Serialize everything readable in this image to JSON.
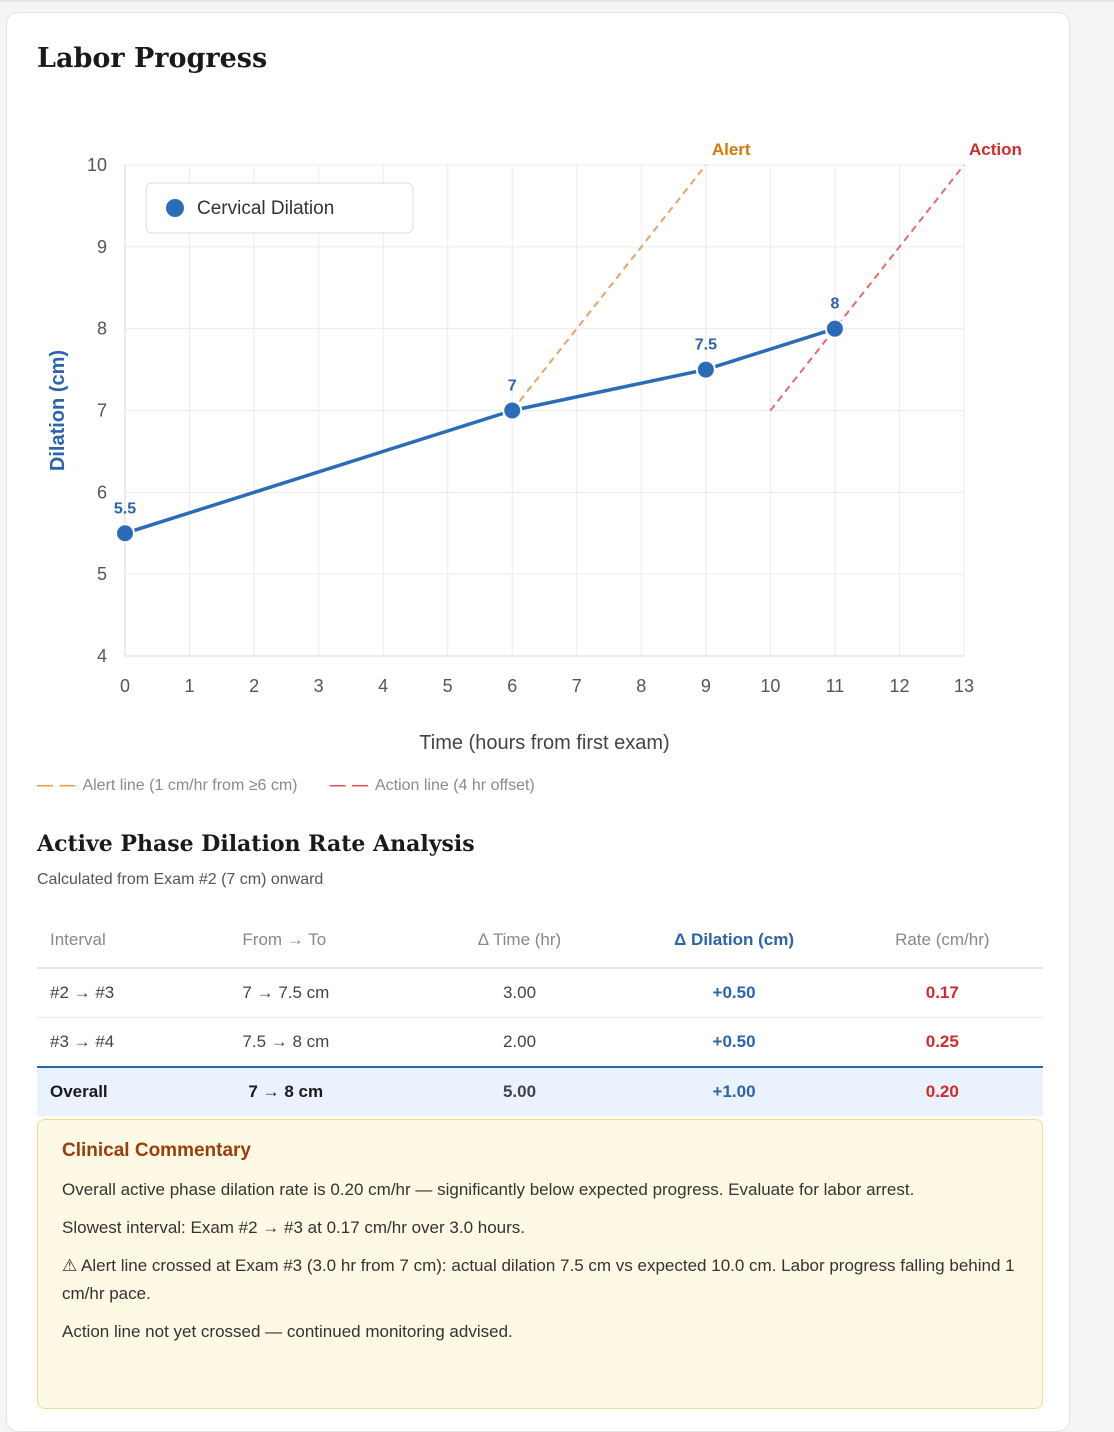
{
  "page_title": "Labor Progress",
  "chart_data": {
    "type": "line",
    "xlabel": "Time (hours from first exam)",
    "ylabel": "Dilation (cm)",
    "xlim": [
      0,
      13
    ],
    "ylim": [
      4,
      10
    ],
    "x_ticks": [
      "0",
      "1",
      "2",
      "3",
      "4",
      "5",
      "6",
      "7",
      "8",
      "9",
      "10",
      "11",
      "12",
      "13"
    ],
    "y_ticks": [
      "4",
      "5",
      "6",
      "7",
      "8",
      "9",
      "10"
    ],
    "grid": true,
    "legend_position": "top-left",
    "series": [
      {
        "name": "Cervical Dilation",
        "color": "#2b6cb8",
        "x": [
          0,
          6,
          9,
          11
        ],
        "y": [
          5.5,
          7,
          7.5,
          8
        ],
        "labels": [
          "5.5",
          "7",
          "7.5",
          "8"
        ]
      }
    ],
    "reference_lines": [
      {
        "name": "Alert",
        "label": "Alert",
        "color": "#e8a26a",
        "label_color": "#d97706",
        "x": [
          6,
          9
        ],
        "y": [
          7,
          10
        ]
      },
      {
        "name": "Action",
        "label": "Action",
        "color": "#e86a6a",
        "label_color": "#d42a2a",
        "x": [
          10,
          13
        ],
        "y": [
          7,
          10
        ]
      }
    ]
  },
  "reference_legend": {
    "alert": {
      "dash": "— —",
      "text": "Alert line (1 cm/hr from ≥6 cm)",
      "color": "#e8a040"
    },
    "action": {
      "dash": "— —",
      "text": "Action line (4 hr offset)",
      "color": "#e05555"
    }
  },
  "analysis": {
    "title": "Active Phase Dilation Rate Analysis",
    "subtitle": "Calculated from Exam #2 (7 cm) onward",
    "headers": [
      "Interval",
      "From → To",
      "Δ Time (hr)",
      "Δ Dilation (cm)",
      "Rate (cm/hr)"
    ],
    "rows": [
      [
        "#2 → #3",
        "7 → 7.5 cm",
        "3.00",
        "+0.50",
        "0.17"
      ],
      [
        "#3 → #4",
        "7.5 → 8 cm",
        "2.00",
        "+0.50",
        "0.25"
      ]
    ],
    "overall": [
      "Overall",
      "7 → 8 cm",
      "5.00",
      "+1.00",
      "0.20"
    ]
  },
  "commentary": {
    "title": "Clinical Commentary",
    "paragraphs": [
      "Overall active phase dilation rate is 0.20 cm/hr — significantly below expected progress. Evaluate for labor arrest.",
      "Slowest interval: Exam #2 → #3 at 0.17 cm/hr over 3.0 hours.",
      "⚠ Alert line crossed at Exam #3 (3.0 hr from 7 cm): actual dilation 7.5 cm vs expected 10.0 cm. Labor progress falling behind 1 cm/hr pace.",
      "Action line not yet crossed — continued monitoring advised."
    ]
  }
}
